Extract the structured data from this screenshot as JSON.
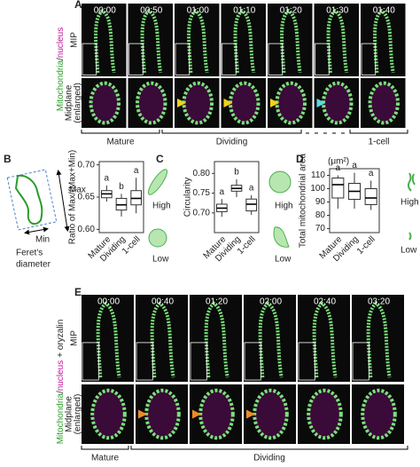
{
  "figure": {
    "panel_a": {
      "label": "A",
      "times": [
        "00:00",
        "00:50",
        "01:00",
        "01:10",
        "01:20",
        "01:30",
        "01:40"
      ],
      "row_labels": [
        "MIP",
        "Midplane",
        "(enlarged)"
      ],
      "stain": [
        "Mitochondria",
        "/",
        "nucleus"
      ],
      "groups": [
        "Mature",
        "Dividing",
        "1-cell"
      ]
    },
    "panel_b_diagram": {
      "label": "B",
      "max": "Max",
      "min": "Min",
      "feret": [
        "Feret's",
        "diameter"
      ]
    },
    "panel_e": {
      "label": "E",
      "times": [
        "00:00",
        "00:40",
        "01:20",
        "02:00",
        "02:40",
        "03:20"
      ],
      "row_labels": [
        "MIP",
        "Midplane",
        "(enlarged)"
      ],
      "stain": [
        "Mitochondria",
        "/",
        "nucleus",
        "+ oryzalin"
      ],
      "groups": [
        "Mature",
        "Dividing"
      ]
    }
  },
  "chart_data": [
    {
      "type": "box",
      "y_label": "Ratio of Max/(Max+Min)",
      "categories": [
        "Mature",
        "Dividing",
        "1-cell"
      ],
      "boxes": [
        {
          "min": 0.643,
          "q1": 0.649,
          "median": 0.655,
          "q3": 0.66,
          "max": 0.668
        },
        {
          "min": 0.62,
          "q1": 0.63,
          "median": 0.638,
          "q3": 0.648,
          "max": 0.655
        },
        {
          "min": 0.625,
          "q1": 0.638,
          "median": 0.648,
          "q3": 0.66,
          "max": 0.68
        }
      ],
      "letters": [
        "a",
        "b",
        "a"
      ],
      "ylim": [
        0.595,
        0.705
      ],
      "yticks": [
        {
          "value": 0.6,
          "label": "0.60"
        },
        {
          "value": 0.65,
          "label": "0.65"
        },
        {
          "value": 0.7,
          "label": "0.70"
        }
      ],
      "high": "High",
      "low": "Low"
    },
    {
      "type": "box",
      "panel_label": "C",
      "y_label": "Circularity",
      "categories": [
        "Mature",
        "Dividing",
        "1-cell"
      ],
      "boxes": [
        {
          "min": 0.69,
          "q1": 0.703,
          "median": 0.712,
          "q3": 0.722,
          "max": 0.735
        },
        {
          "min": 0.74,
          "q1": 0.755,
          "median": 0.762,
          "q3": 0.77,
          "max": 0.785
        },
        {
          "min": 0.695,
          "q1": 0.705,
          "median": 0.722,
          "q3": 0.735,
          "max": 0.745
        }
      ],
      "letters": [
        "a",
        "b",
        "a"
      ],
      "ylim": [
        0.65,
        0.83
      ],
      "yticks": [
        {
          "value": 0.7,
          "label": "0.70"
        },
        0.75,
        {
          "value": 0.8,
          "label": "0.80"
        }
      ],
      "high": "High",
      "low": "Low"
    },
    {
      "type": "box",
      "panel_label": "D",
      "y_label": "Total mitochondrial area",
      "unit": "(μm²)",
      "categories": [
        "Mature",
        "Dividing",
        "1-cell"
      ],
      "boxes": [
        {
          "min": 85,
          "q1": 93,
          "median": 103,
          "q3": 108,
          "max": 110
        },
        {
          "min": 85,
          "q1": 92,
          "median": 98,
          "q3": 104,
          "max": 112
        },
        {
          "min": 84,
          "q1": 88,
          "median": 93,
          "q3": 100,
          "max": 106
        }
      ],
      "letters": [
        "a",
        "a",
        "a"
      ],
      "ylim": [
        67,
        115
      ],
      "yticks": [
        70,
        80,
        90,
        100,
        110
      ],
      "high": "High",
      "low": "Low"
    }
  ]
}
